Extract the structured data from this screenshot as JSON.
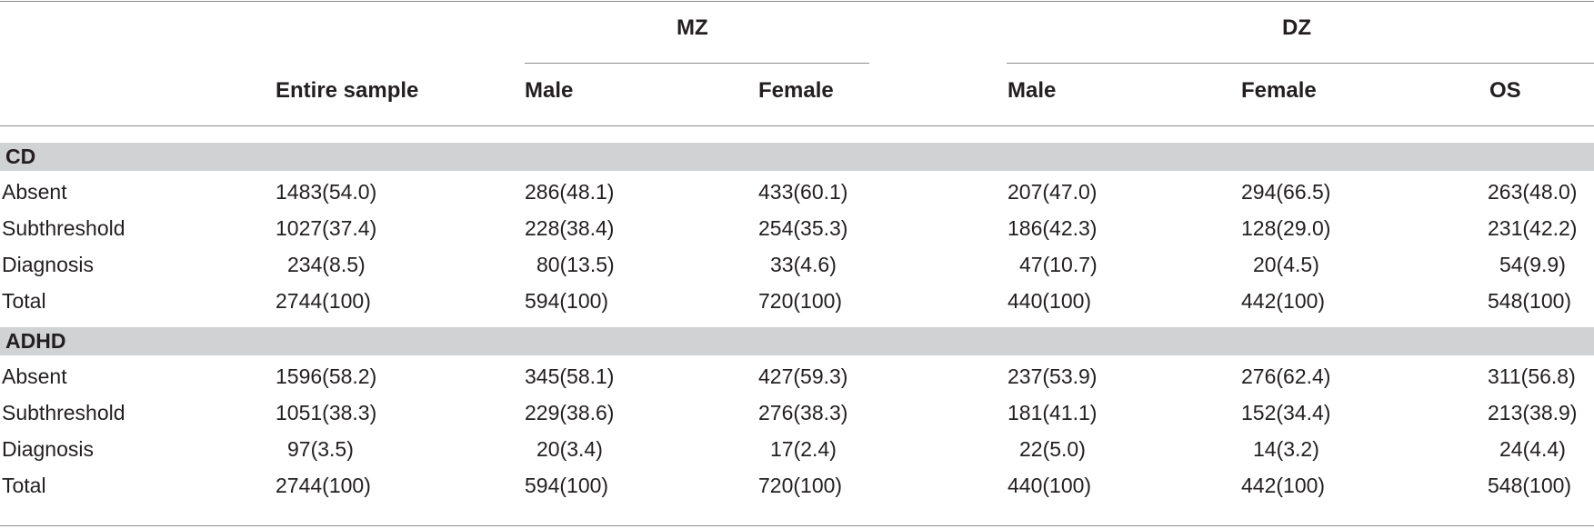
{
  "header": {
    "groups": {
      "mz": "MZ",
      "dz": "DZ"
    },
    "columns": {
      "entire": "Entire sample",
      "mz_male": "Male",
      "mz_female": "Female",
      "dz_male": "Male",
      "dz_female": "Female",
      "dz_os": "OS"
    }
  },
  "sections": [
    {
      "title": "CD",
      "rows": [
        {
          "label": "Absent",
          "cells": [
            "1483(54.0)",
            "286(48.1)",
            "433(60.1)",
            "207(47.0)",
            "294(66.5)",
            "263(48.0)"
          ]
        },
        {
          "label": "Subthreshold",
          "cells": [
            "1027(37.4)",
            "228(38.4)",
            "254(35.3)",
            "186(42.3)",
            "128(29.0)",
            "231(42.2)"
          ]
        },
        {
          "label": "Diagnosis",
          "cells": [
            "234(8.5)",
            "80(13.5)",
            "33(4.6)",
            "47(10.7)",
            "20(4.5)",
            "54(9.9)"
          ]
        },
        {
          "label": "Total",
          "cells": [
            "2744(100)",
            "594(100)",
            "720(100)",
            "440(100)",
            "442(100)",
            "548(100)"
          ]
        }
      ]
    },
    {
      "title": "ADHD",
      "rows": [
        {
          "label": "Absent",
          "cells": [
            "1596(58.2)",
            "345(58.1)",
            "427(59.3)",
            "237(53.9)",
            "276(62.4)",
            "311(56.8)"
          ]
        },
        {
          "label": "Subthreshold",
          "cells": [
            "1051(38.3)",
            "229(38.6)",
            "276(38.3)",
            "181(41.1)",
            "152(34.4)",
            "213(38.9)"
          ]
        },
        {
          "label": "Diagnosis",
          "cells": [
            "97(3.5)",
            "20(3.4)",
            "17(2.4)",
            "22(5.0)",
            "14(3.2)",
            "24(4.4)"
          ]
        },
        {
          "label": "Total",
          "cells": [
            "2744(100)",
            "594(100)",
            "720(100)",
            "440(100)",
            "442(100)",
            "548(100)"
          ]
        }
      ]
    }
  ]
}
